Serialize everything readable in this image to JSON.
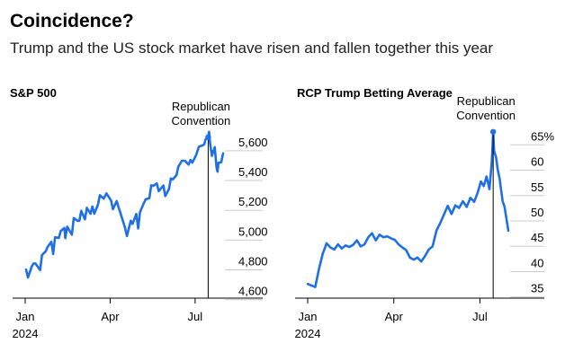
{
  "title": "Coincidence?",
  "subtitle": "Trump and the US stock market have risen and fallen together this year",
  "colors": {
    "line": "#1f6fe5",
    "axis": "#000000",
    "grid": "#cccccc",
    "text": "#000000"
  },
  "chart_data": [
    {
      "type": "line",
      "title": "S&P 500",
      "annotation": "Republican\nConvention",
      "annotation_date": "2024-07-15",
      "xlim": [
        "2024-01-01",
        "2024-07-31"
      ],
      "ylim": [
        4550,
        5720
      ],
      "yticks": [
        4600,
        4800,
        5000,
        5200,
        5400,
        5600
      ],
      "ytick_labels": [
        "4,600",
        "4,800",
        "5,000",
        "5,200",
        "5,400",
        "5,600"
      ],
      "xticks": [
        {
          "date": "2024-01-01",
          "label": "Jan",
          "sublabel": "2024"
        },
        {
          "date": "2024-04-01",
          "label": "Apr"
        },
        {
          "date": "2024-07-01",
          "label": "Jul"
        }
      ],
      "series": [
        {
          "x": [
            "2024-01-02",
            "2024-01-04",
            "2024-01-08",
            "2024-01-10",
            "2024-01-12",
            "2024-01-17",
            "2024-01-19",
            "2024-01-23",
            "2024-01-25",
            "2024-01-29",
            "2024-01-31",
            "2024-02-02",
            "2024-02-06",
            "2024-02-08",
            "2024-02-12",
            "2024-02-13",
            "2024-02-15",
            "2024-02-20",
            "2024-02-22",
            "2024-02-26",
            "2024-02-28",
            "2024-03-01",
            "2024-03-05",
            "2024-03-07",
            "2024-03-11",
            "2024-03-13",
            "2024-03-15",
            "2024-03-19",
            "2024-03-21",
            "2024-03-25",
            "2024-03-28",
            "2024-04-02",
            "2024-04-04",
            "2024-04-08",
            "2024-04-10",
            "2024-04-12",
            "2024-04-15",
            "2024-04-17",
            "2024-04-19",
            "2024-04-23",
            "2024-04-25",
            "2024-04-29",
            "2024-05-01",
            "2024-05-03",
            "2024-05-07",
            "2024-05-09",
            "2024-05-13",
            "2024-05-15",
            "2024-05-17",
            "2024-05-21",
            "2024-05-23",
            "2024-05-28",
            "2024-05-30",
            "2024-06-03",
            "2024-06-05",
            "2024-06-07",
            "2024-06-11",
            "2024-06-13",
            "2024-06-17",
            "2024-06-20",
            "2024-06-24",
            "2024-06-26",
            "2024-06-28",
            "2024-07-02",
            "2024-07-05",
            "2024-07-09",
            "2024-07-11",
            "2024-07-12",
            "2024-07-15",
            "2024-07-16",
            "2024-07-17",
            "2024-07-19",
            "2024-07-22",
            "2024-07-24",
            "2024-07-25",
            "2024-07-26",
            "2024-07-29",
            "2024-07-31"
          ],
          "values": [
            4742,
            4688,
            4763,
            4783,
            4783,
            4739,
            4840,
            4864,
            4894,
            4928,
            4846,
            4959,
            4954,
            5000,
            5021,
            4953,
            5030,
            4976,
            5088,
            5070,
            5069,
            5137,
            5079,
            5157,
            5117,
            5165,
            5117,
            5178,
            5241,
            5218,
            5254,
            5205,
            5147,
            5202,
            5160,
            5123,
            5061,
            5022,
            4967,
            5070,
            5048,
            5116,
            5018,
            5128,
            5187,
            5214,
            5221,
            5308,
            5303,
            5321,
            5268,
            5306,
            5236,
            5283,
            5354,
            5347,
            5375,
            5433,
            5473,
            5473,
            5447,
            5478,
            5460,
            5509,
            5567,
            5576,
            5585,
            5615,
            5631,
            5667,
            5589,
            5505,
            5564,
            5427,
            5399,
            5459,
            5463,
            5522
          ]
        }
      ]
    },
    {
      "type": "line",
      "title": "RCP Trump Betting Average",
      "annotation": "Republican\nConvention",
      "annotation_date": "2024-07-15",
      "xlim": [
        "2024-01-01",
        "2024-07-31"
      ],
      "ylim": [
        33,
        67
      ],
      "yticks": [
        35,
        40,
        45,
        50,
        55,
        60,
        65
      ],
      "ytick_labels": [
        "35",
        "40",
        "45",
        "50",
        "55",
        "60",
        "65%"
      ],
      "xticks": [
        {
          "date": "2024-01-01",
          "label": "Jan",
          "sublabel": "2024"
        },
        {
          "date": "2024-04-01",
          "label": "Apr"
        },
        {
          "date": "2024-07-01",
          "label": "Jul"
        }
      ],
      "series": [
        {
          "x": [
            "2024-01-01",
            "2024-01-05",
            "2024-01-09",
            "2024-01-13",
            "2024-01-17",
            "2024-01-21",
            "2024-01-25",
            "2024-01-29",
            "2024-02-02",
            "2024-02-06",
            "2024-02-10",
            "2024-02-14",
            "2024-02-18",
            "2024-02-22",
            "2024-02-26",
            "2024-03-01",
            "2024-03-05",
            "2024-03-09",
            "2024-03-13",
            "2024-03-17",
            "2024-03-21",
            "2024-03-25",
            "2024-03-29",
            "2024-04-02",
            "2024-04-06",
            "2024-04-10",
            "2024-04-14",
            "2024-04-18",
            "2024-04-22",
            "2024-04-26",
            "2024-04-30",
            "2024-05-04",
            "2024-05-08",
            "2024-05-12",
            "2024-05-16",
            "2024-05-20",
            "2024-05-24",
            "2024-05-28",
            "2024-06-01",
            "2024-06-05",
            "2024-06-09",
            "2024-06-13",
            "2024-06-17",
            "2024-06-21",
            "2024-06-25",
            "2024-06-29",
            "2024-07-02",
            "2024-07-05",
            "2024-07-08",
            "2024-07-11",
            "2024-07-13",
            "2024-07-14",
            "2024-07-15",
            "2024-07-16",
            "2024-07-18",
            "2024-07-20",
            "2024-07-22",
            "2024-07-23",
            "2024-07-25",
            "2024-07-27",
            "2024-07-29",
            "2024-07-31"
          ],
          "values": [
            35.8,
            35.5,
            35.2,
            38.8,
            41.8,
            43.8,
            43.0,
            42.6,
            43.6,
            42.8,
            43.4,
            43.1,
            43.5,
            44.4,
            43.2,
            43.6,
            45.0,
            45.8,
            44.4,
            45.5,
            45.0,
            45.2,
            44.8,
            44.5,
            43.6,
            43.0,
            42.5,
            41.0,
            40.6,
            41.0,
            40.2,
            41.3,
            42.6,
            43.2,
            46.3,
            47.8,
            49.5,
            51.2,
            49.6,
            51.3,
            50.8,
            52.1,
            51.0,
            52.8,
            52.0,
            54.0,
            56.0,
            55.1,
            57.0,
            54.5,
            58.7,
            61.5,
            65.8,
            62.0,
            60.8,
            58.2,
            56.4,
            54.8,
            52.1,
            51.0,
            48.7,
            46.3
          ]
        }
      ]
    }
  ]
}
